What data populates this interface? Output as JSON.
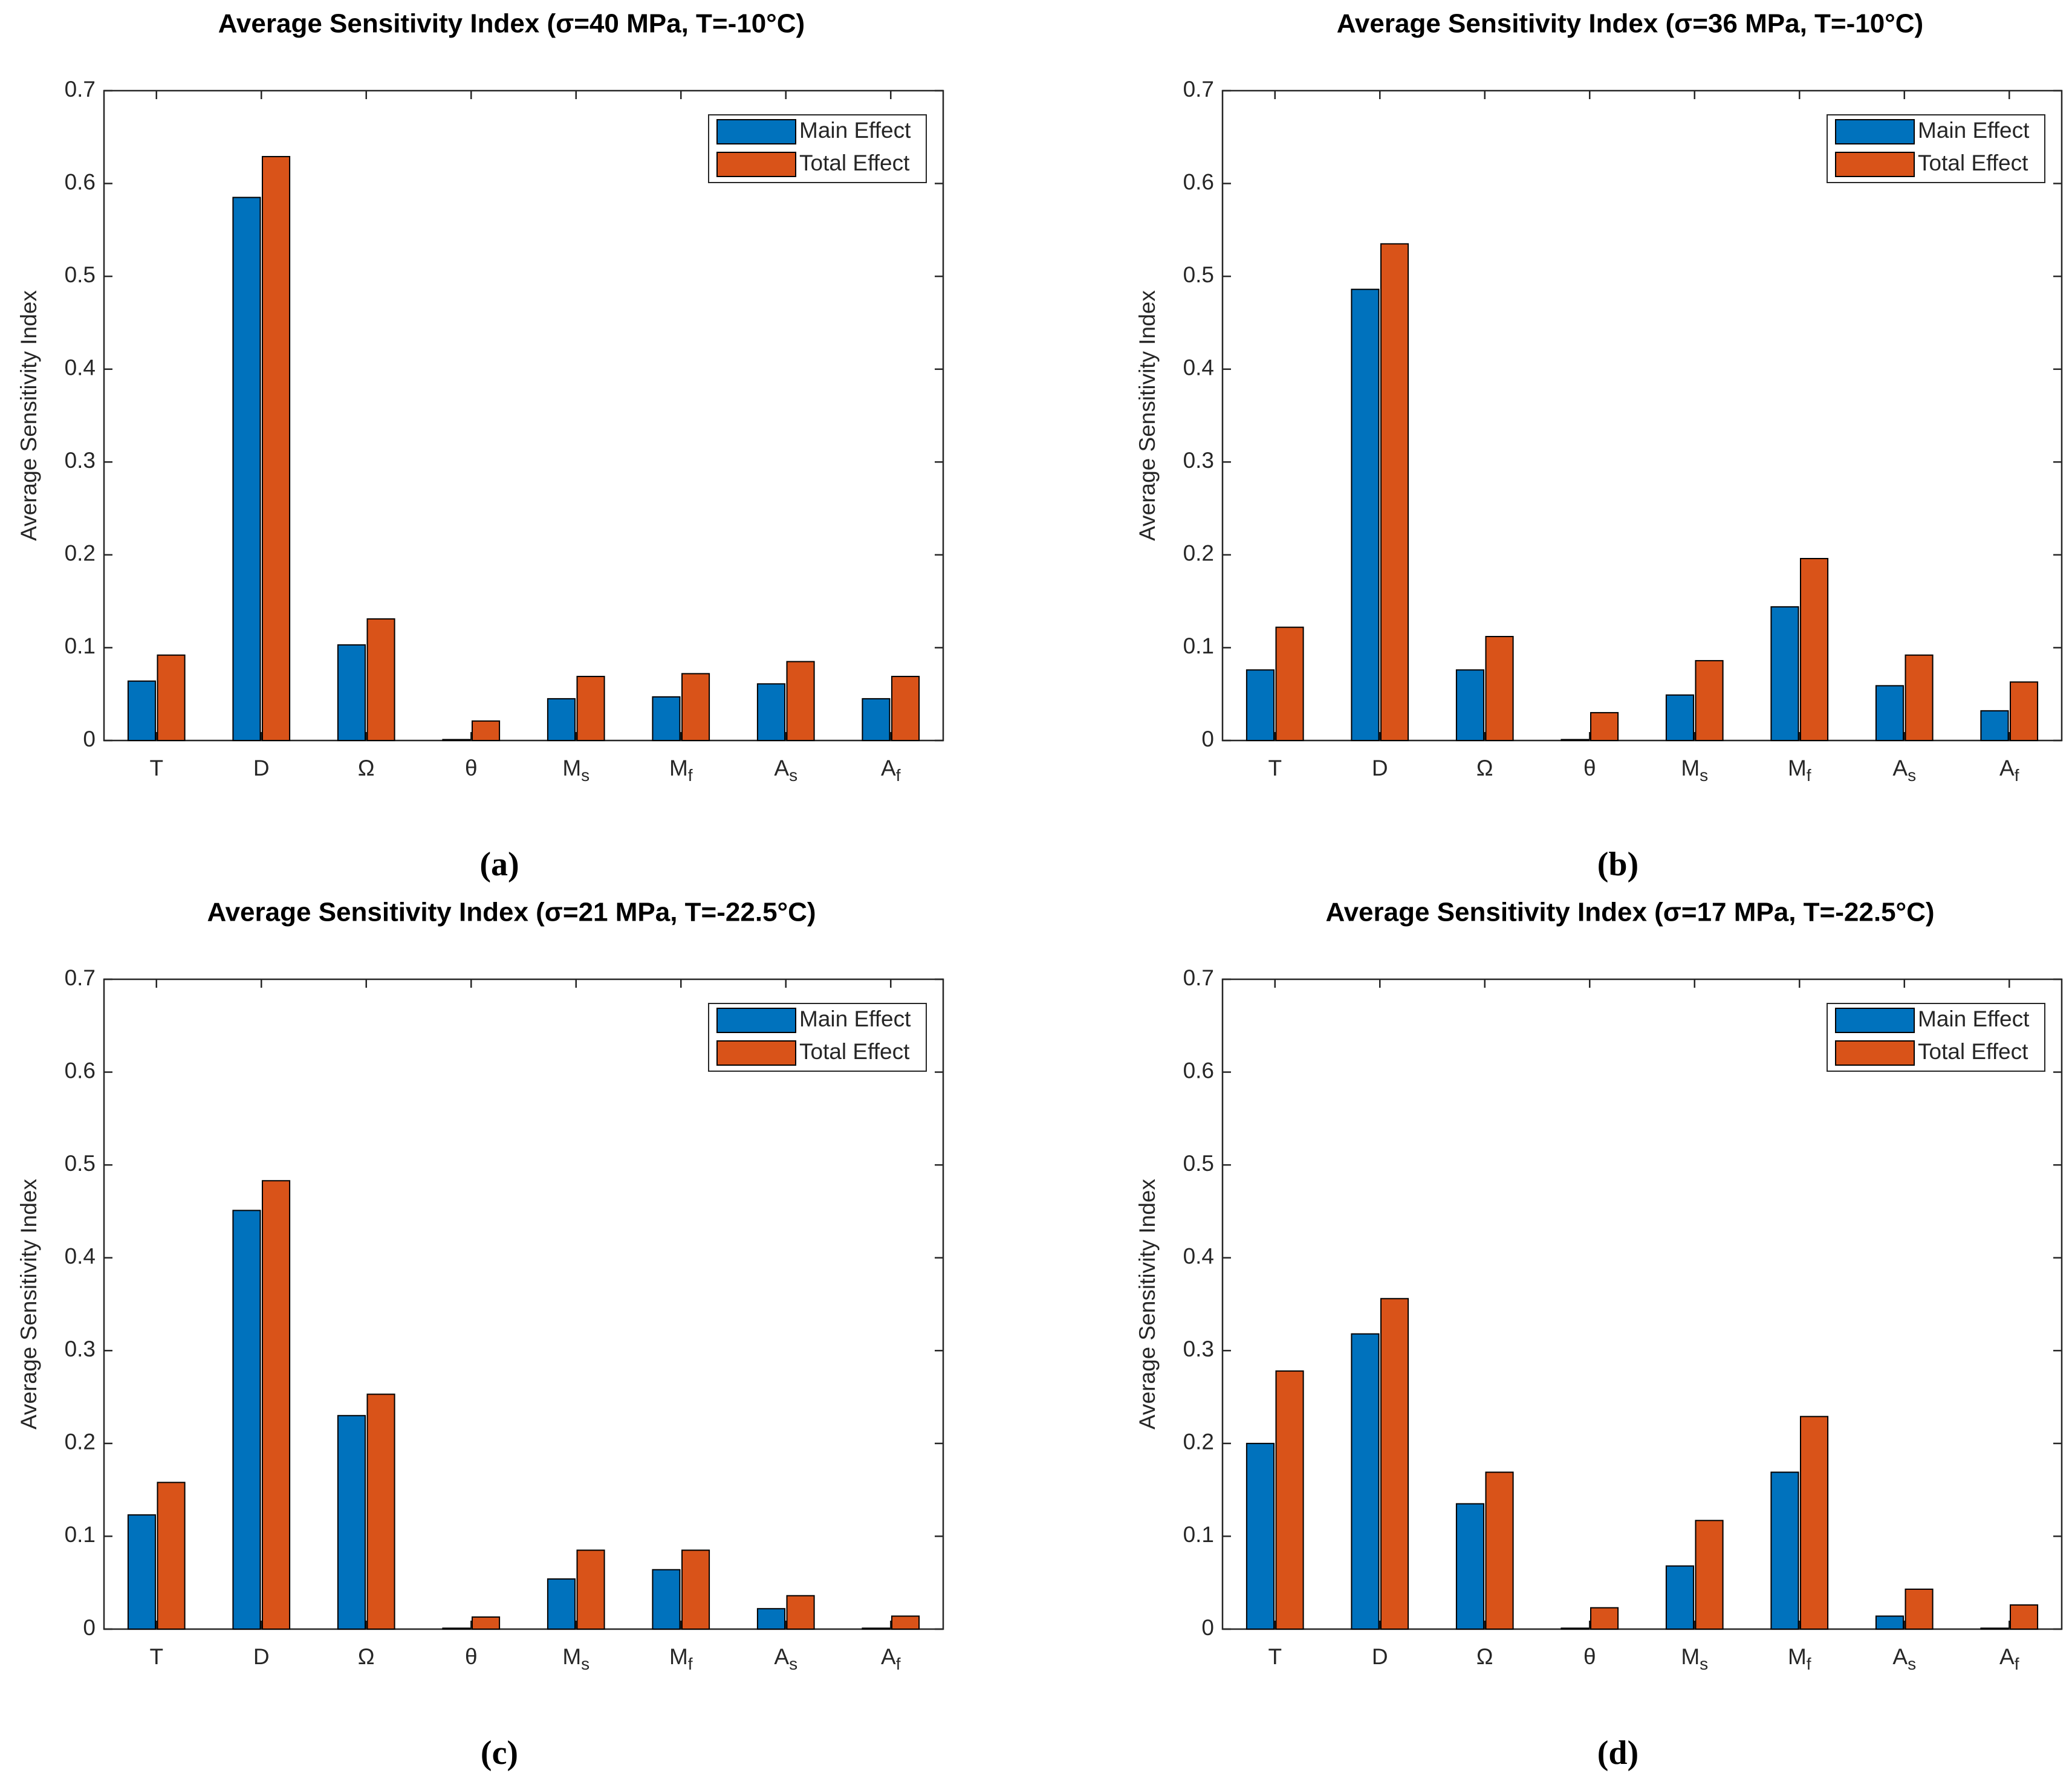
{
  "chart_data": [
    {
      "type": "bar",
      "title": "Average Sensitivity Index (σ=40 MPa, T=-10°C)",
      "panel_label": "(a)",
      "y_label": "Average Sensitivity Index",
      "categories": [
        "T",
        "D",
        "Ω",
        "θ",
        "Ms",
        "Mf",
        "As",
        "Af"
      ],
      "series": [
        {
          "name": "Main Effect",
          "color": "#0072BD",
          "values": [
            0.064,
            0.585,
            0.103,
            0.001,
            0.045,
            0.047,
            0.061,
            0.045
          ]
        },
        {
          "name": "Total Effect",
          "color": "#D95319",
          "values": [
            0.092,
            0.629,
            0.131,
            0.021,
            0.069,
            0.072,
            0.085,
            0.069
          ]
        }
      ],
      "ylim": [
        0,
        0.7
      ],
      "yticks": [
        0,
        0.1,
        0.2,
        0.3,
        0.4,
        0.5,
        0.6,
        0.7
      ],
      "grid": false,
      "legend": "top-right"
    },
    {
      "type": "bar",
      "title": "Average Sensitivity Index (σ=36 MPa, T=-10°C)",
      "panel_label": "(b)",
      "y_label": "Average Sensitivity Index",
      "categories": [
        "T",
        "D",
        "Ω",
        "θ",
        "Ms",
        "Mf",
        "As",
        "Af"
      ],
      "series": [
        {
          "name": "Main Effect",
          "color": "#0072BD",
          "values": [
            0.076,
            0.486,
            0.076,
            0.001,
            0.049,
            0.144,
            0.059,
            0.032
          ]
        },
        {
          "name": "Total Effect",
          "color": "#D95319",
          "values": [
            0.122,
            0.535,
            0.112,
            0.03,
            0.086,
            0.196,
            0.092,
            0.063
          ]
        }
      ],
      "ylim": [
        0,
        0.7
      ],
      "yticks": [
        0,
        0.1,
        0.2,
        0.3,
        0.4,
        0.5,
        0.6,
        0.7
      ],
      "grid": false,
      "legend": "top-right"
    },
    {
      "type": "bar",
      "title": "Average Sensitivity Index (σ=21 MPa, T=-22.5°C)",
      "panel_label": "(c)",
      "y_label": "Average Sensitivity Index",
      "categories": [
        "T",
        "D",
        "Ω",
        "θ",
        "Ms",
        "Mf",
        "As",
        "Af"
      ],
      "series": [
        {
          "name": "Main Effect",
          "color": "#0072BD",
          "values": [
            0.123,
            0.451,
            0.23,
            0.001,
            0.054,
            0.064,
            0.022,
            0.001
          ]
        },
        {
          "name": "Total Effect",
          "color": "#D95319",
          "values": [
            0.158,
            0.483,
            0.253,
            0.013,
            0.085,
            0.085,
            0.036,
            0.014
          ]
        }
      ],
      "ylim": [
        0,
        0.7
      ],
      "yticks": [
        0,
        0.1,
        0.2,
        0.3,
        0.4,
        0.5,
        0.6,
        0.7
      ],
      "grid": false,
      "legend": "top-right"
    },
    {
      "type": "bar",
      "title": "Average Sensitivity Index (σ=17 MPa, T=-22.5°C)",
      "panel_label": "(d)",
      "y_label": "Average Sensitivity Index",
      "categories": [
        "T",
        "D",
        "Ω",
        "θ",
        "Ms",
        "Mf",
        "As",
        "Af"
      ],
      "series": [
        {
          "name": "Main Effect",
          "color": "#0072BD",
          "values": [
            0.2,
            0.318,
            0.135,
            0.001,
            0.068,
            0.169,
            0.014,
            0.001
          ]
        },
        {
          "name": "Total Effect",
          "color": "#D95319",
          "values": [
            0.278,
            0.356,
            0.169,
            0.023,
            0.117,
            0.229,
            0.043,
            0.026
          ]
        }
      ],
      "ylim": [
        0,
        0.7
      ],
      "yticks": [
        0,
        0.1,
        0.2,
        0.3,
        0.4,
        0.5,
        0.6,
        0.7
      ],
      "grid": false,
      "legend": "top-right"
    }
  ]
}
